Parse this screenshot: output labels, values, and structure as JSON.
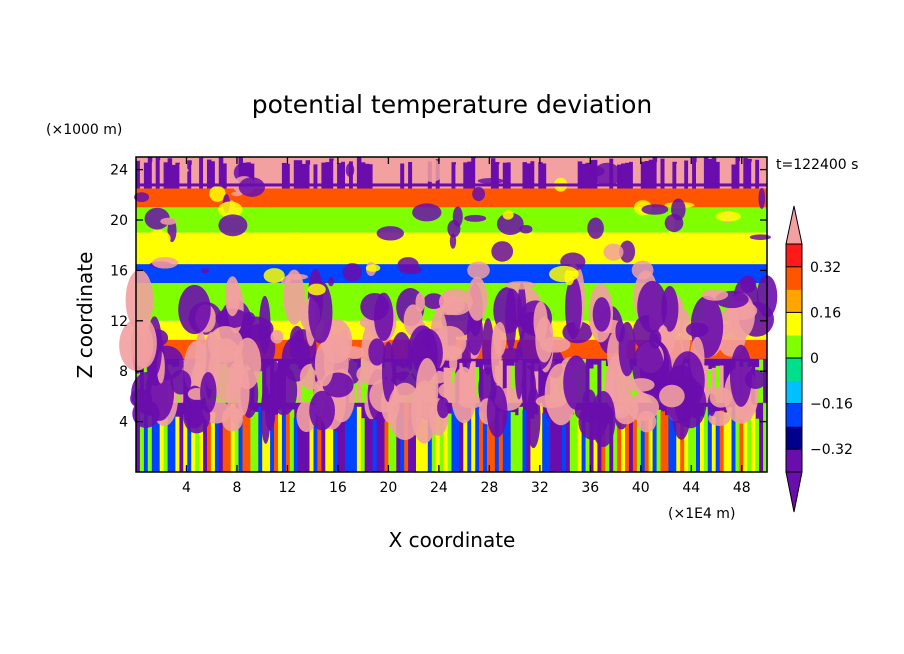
{
  "chart_data": {
    "type": "heatmap",
    "title": "potential temperature deviation",
    "xlabel": "X coordinate",
    "ylabel": "Z coordinate",
    "x_unit": "(×1E4 m)",
    "y_unit": "(×1000 m)",
    "time_label": "t=122400 s",
    "xlim": [
      0,
      50
    ],
    "ylim": [
      0,
      25
    ],
    "x_ticks": [
      "4",
      "8",
      "12",
      "16",
      "20",
      "24",
      "28",
      "32",
      "36",
      "40",
      "44",
      "48"
    ],
    "y_ticks": [
      "4",
      "8",
      "12",
      "16",
      "20",
      "24"
    ],
    "colorbar": {
      "levels": [
        -0.4,
        -0.32,
        -0.24,
        -0.16,
        -0.08,
        0,
        0.08,
        0.16,
        0.24,
        0.32,
        0.4
      ],
      "labels": [
        "0.32",
        "0.16",
        "0",
        "−0.16",
        "−0.32"
      ],
      "colors": [
        "#6a0dad",
        "#00008b",
        "#0044ff",
        "#00c0ff",
        "#00e08a",
        "#7fff00",
        "#ffff00",
        "#ffa500",
        "#ff5500",
        "#ff1a1a"
      ],
      "over_color": "#f2a0a0",
      "under_color": "#6a0dad"
    },
    "layers": [
      {
        "z_range": [
          0,
          5.5
        ],
        "description_value": "alternating",
        "values": [
          -0.35,
          0.05,
          0.25,
          -0.2,
          0.1
        ]
      },
      {
        "z_range": [
          5.5,
          9
        ],
        "values": [
          -0.38,
          0.42,
          0.02
        ]
      },
      {
        "z_range": [
          9,
          10.5
        ],
        "values": [
          0.28
        ]
      },
      {
        "z_range": [
          10.5,
          12
        ],
        "values": [
          0.15
        ]
      },
      {
        "z_range": [
          12,
          15
        ],
        "values": [
          0.05
        ]
      },
      {
        "z_range": [
          15,
          16.5
        ],
        "values": [
          -0.2
        ]
      },
      {
        "z_range": [
          16.5,
          19
        ],
        "values": [
          0.1
        ]
      },
      {
        "z_range": [
          19,
          21
        ],
        "values": [
          0.05
        ]
      },
      {
        "z_range": [
          21,
          22.5
        ],
        "values": [
          0.3
        ]
      },
      {
        "z_range": [
          22.5,
          25
        ],
        "values": [
          0.42,
          -0.38
        ]
      }
    ]
  }
}
